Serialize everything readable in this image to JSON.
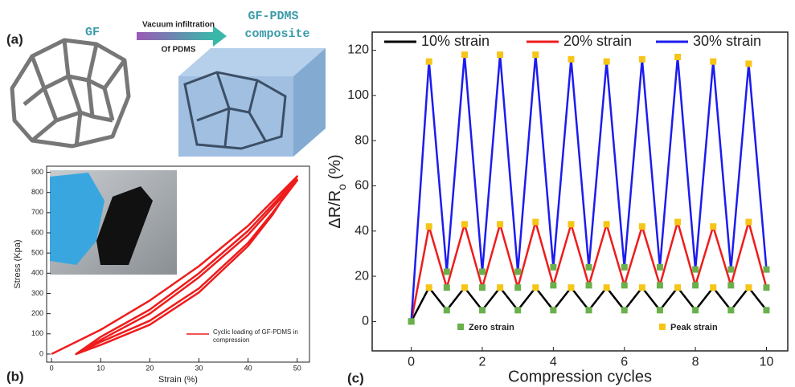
{
  "diagram": {
    "panel": "(a)",
    "left_label": "GF",
    "arrow_top": "Vacuum infiltration",
    "arrow_bottom": "Of PDMS",
    "right_label": [
      "GF-PDMS",
      "composite"
    ]
  },
  "chart_data": [
    {
      "type": "line",
      "panel": "(b)",
      "xlabel": "Strain (%)",
      "ylabel": "Stress (Kpa)",
      "x": [
        0,
        10,
        20,
        30,
        40,
        50,
        45,
        40,
        30,
        20,
        10,
        5,
        10,
        20,
        30,
        40,
        50,
        45,
        40,
        30,
        20,
        10,
        5,
        10,
        20,
        30,
        40,
        50
      ],
      "series": [
        {
          "name": "Cyclic loading of GF-PDMS in compression",
          "color": "#ee1c1c",
          "values": [
            0,
            120,
            265,
            435,
            635,
            880,
            690,
            535,
            305,
            145,
            45,
            0,
            70,
            200,
            380,
            590,
            860,
            700,
            550,
            325,
            165,
            60,
            0,
            85,
            220,
            400,
            610,
            870
          ]
        }
      ],
      "xlim": [
        -1,
        52.5
      ],
      "ylim": [
        -40,
        930
      ],
      "xticks": [
        0,
        10,
        20,
        30,
        40,
        50
      ],
      "yticks": [
        0,
        100,
        200,
        300,
        400,
        500,
        600,
        700,
        800,
        900
      ],
      "legend": "lower right"
    },
    {
      "type": "line",
      "panel": "(c)",
      "xlabel": "Compression cycles",
      "ylabel": [
        "ΔR/R",
        "o",
        " (%)"
      ],
      "x": [
        0,
        0.5,
        1,
        1.5,
        2,
        2.5,
        3,
        3.5,
        4,
        4.5,
        5,
        5.5,
        6,
        6.5,
        7,
        7.5,
        8,
        8.5,
        9,
        9.5,
        10
      ],
      "series": [
        {
          "name": "10% strain",
          "color": "#000000",
          "values": [
            0,
            15,
            5,
            15,
            5,
            15,
            5,
            15,
            5,
            15,
            5,
            15,
            5,
            15,
            5,
            15,
            5,
            15,
            5,
            15,
            5
          ]
        },
        {
          "name": "20% strain",
          "color": "#ee1c1c",
          "values": [
            0,
            42,
            15,
            43,
            15,
            43,
            15,
            44,
            16,
            43,
            16,
            43,
            16,
            42,
            16,
            44,
            16,
            42,
            16,
            44,
            15
          ]
        },
        {
          "name": "30% strain",
          "color": "#1c1cee",
          "values": [
            0,
            115,
            22,
            118,
            22,
            118,
            22,
            118,
            24,
            116,
            24,
            115,
            24,
            116,
            24,
            117,
            23,
            115,
            23,
            114,
            23
          ]
        }
      ],
      "markers": [
        {
          "name": "Zero strain",
          "color": "#6ab04c"
        },
        {
          "name": "Peak strain",
          "color": "#f5c518"
        }
      ],
      "xlim": [
        -1.1,
        10.6
      ],
      "ylim": [
        -13,
        128
      ],
      "xticks": [
        0,
        2,
        4,
        6,
        8,
        10
      ],
      "yticks": [
        0,
        20,
        40,
        60,
        80,
        100,
        120
      ],
      "legend": "top"
    }
  ]
}
